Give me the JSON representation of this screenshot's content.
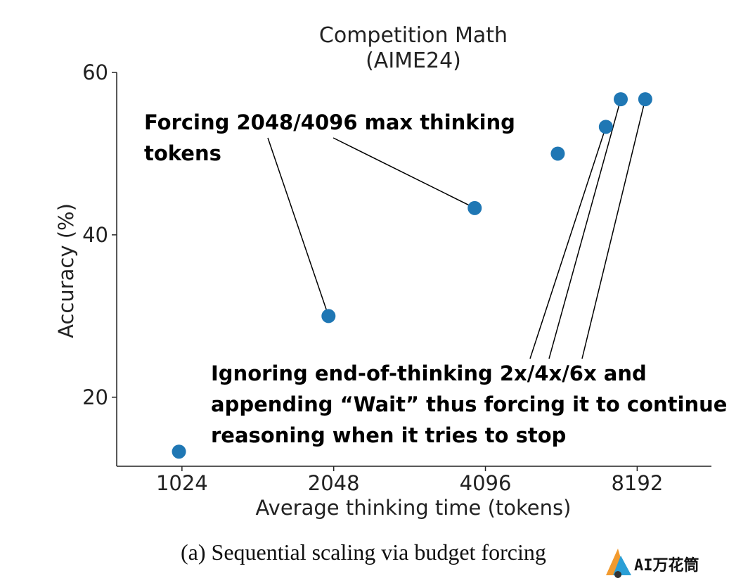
{
  "chart_data": {
    "type": "scatter",
    "title": [
      "Competition Math",
      "(AIME24)"
    ],
    "xlabel": "Average thinking time (tokens)",
    "ylabel": "Accuracy (%)",
    "x_scale": "log2",
    "xlim": [
      760,
      11500
    ],
    "ylim": [
      11.5,
      60
    ],
    "x_ticks": [
      1024,
      2048,
      4096,
      8192
    ],
    "x_tick_labels": [
      "1024",
      "2048",
      "4096",
      "8192"
    ],
    "y_ticks": [
      20,
      40,
      60
    ],
    "y_tick_labels": [
      "20",
      "40",
      "60"
    ],
    "point_color": "#1f77b4",
    "grid": false,
    "points": [
      {
        "x": 1010,
        "y": 13.3
      },
      {
        "x": 2000,
        "y": 30.0
      },
      {
        "x": 3900,
        "y": 43.3
      },
      {
        "x": 5700,
        "y": 50.0
      },
      {
        "x": 7100,
        "y": 53.3
      },
      {
        "x": 7600,
        "y": 56.7
      },
      {
        "x": 8500,
        "y": 56.7
      }
    ],
    "annotations": [
      {
        "text": [
          "Forcing 2048/4096 max thinking",
          "tokens"
        ],
        "targets": [
          1,
          2
        ]
      },
      {
        "text": [
          "Ignoring end-of-thinking 2x/4x/6x and",
          "appending “Wait” thus forcing it to continue",
          "reasoning when it tries to stop"
        ],
        "targets": [
          4,
          5,
          6
        ]
      }
    ]
  },
  "caption": "(a) Sequential scaling via budget forcing",
  "watermark": {
    "text": "AI万花筒",
    "logo": "ai-wanhuatong-logo"
  }
}
